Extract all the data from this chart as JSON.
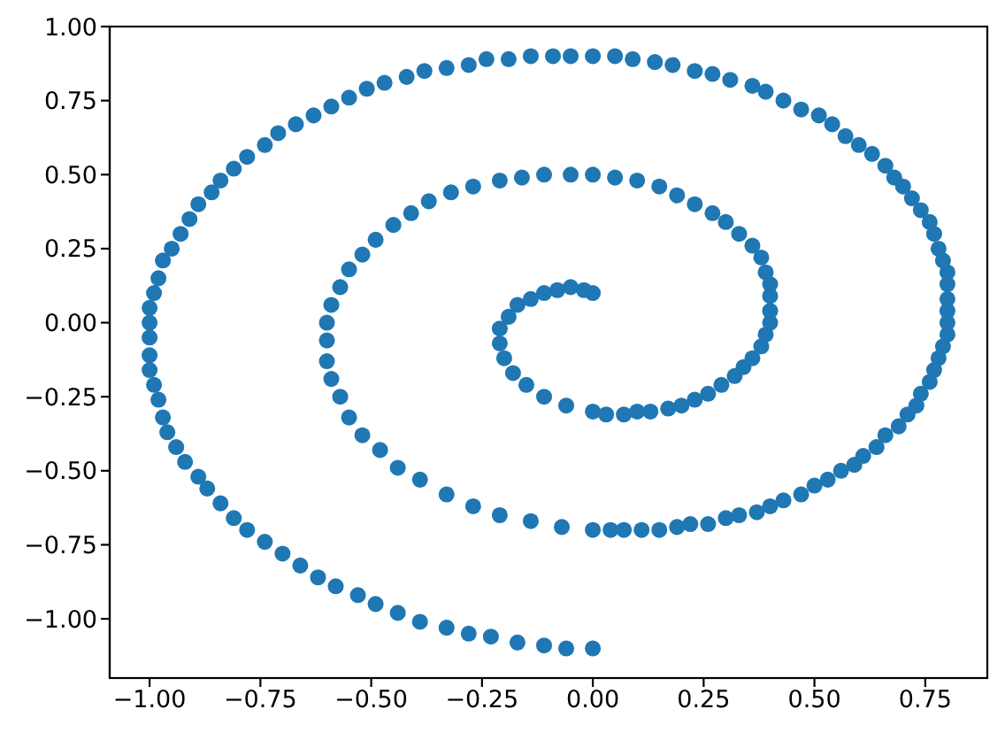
{
  "chart_data": {
    "type": "scatter",
    "color": "#1f77b4",
    "marker": "circle",
    "xlim": [
      -1.09,
      0.89
    ],
    "ylim": [
      -1.2,
      1.0
    ],
    "xticks": [
      {
        "value": -1,
        "label": "−1.00"
      },
      {
        "value": -0.75,
        "label": "−0.75"
      },
      {
        "value": -0.5,
        "label": "−0.50"
      },
      {
        "value": -0.25,
        "label": "−0.25"
      },
      {
        "value": 0,
        "label": "0.00"
      },
      {
        "value": 0.25,
        "label": "0.25"
      },
      {
        "value": 0.5,
        "label": "0.50"
      },
      {
        "value": 0.75,
        "label": "0.75"
      }
    ],
    "yticks": [
      {
        "value": -1,
        "label": "−1.00"
      },
      {
        "value": -0.75,
        "label": "−0.75"
      },
      {
        "value": -0.5,
        "label": "−0.50"
      },
      {
        "value": -0.25,
        "label": "−0.25"
      },
      {
        "value": 0,
        "label": "0.00"
      },
      {
        "value": 0.25,
        "label": "0.25"
      },
      {
        "value": 0.5,
        "label": "0.50"
      },
      {
        "value": 0.75,
        "label": "0.75"
      },
      {
        "value": 1,
        "label": "1.00"
      }
    ],
    "x": [
      0,
      -0.02,
      -0.05,
      -0.08,
      -0.11,
      -0.14,
      -0.17,
      -0.19,
      -0.21,
      -0.21,
      -0.2,
      -0.18,
      -0.15,
      -0.11,
      -0.06,
      0,
      0.03,
      0.07,
      0.1,
      0.13,
      0.17,
      0.2,
      0.23,
      0.26,
      0.29,
      0.32,
      0.34,
      0.36,
      0.38,
      0.39,
      0.4,
      0.4,
      0.4,
      0.4,
      0.39,
      0.38,
      0.36,
      0.33,
      0.3,
      0.27,
      0.23,
      0.19,
      0.15,
      0.1,
      0.05,
      0,
      -0.05,
      -0.11,
      -0.16,
      -0.21,
      -0.27,
      -0.32,
      -0.37,
      -0.41,
      -0.45,
      -0.49,
      -0.52,
      -0.55,
      -0.57,
      -0.59,
      -0.6,
      -0.6,
      -0.6,
      -0.59,
      -0.57,
      -0.55,
      -0.52,
      -0.48,
      -0.44,
      -0.39,
      -0.33,
      -0.27,
      -0.21,
      -0.14,
      -0.07,
      0,
      0.04,
      0.07,
      0.11,
      0.15,
      0.19,
      0.22,
      0.26,
      0.3,
      0.33,
      0.37,
      0.4,
      0.43,
      0.47,
      0.5,
      0.53,
      0.56,
      0.59,
      0.61,
      0.64,
      0.66,
      0.69,
      0.71,
      0.73,
      0.74,
      0.76,
      0.77,
      0.78,
      0.79,
      0.8,
      0.8,
      0.8,
      0.8,
      0.8,
      0.8,
      0.79,
      0.78,
      0.77,
      0.76,
      0.74,
      0.72,
      0.7,
      0.68,
      0.66,
      0.63,
      0.6,
      0.57,
      0.54,
      0.51,
      0.47,
      0.43,
      0.39,
      0.36,
      0.31,
      0.27,
      0.23,
      0.18,
      0.14,
      0.09,
      0.05,
      0,
      -0.05,
      -0.09,
      -0.14,
      -0.19,
      -0.24,
      -0.28,
      -0.33,
      -0.38,
      -0.42,
      -0.47,
      -0.51,
      -0.55,
      -0.59,
      -0.63,
      -0.67,
      -0.71,
      -0.74,
      -0.78,
      -0.81,
      -0.84,
      -0.86,
      -0.89,
      -0.91,
      -0.93,
      -0.95,
      -0.97,
      -0.98,
      -0.99,
      -1,
      -1,
      -1,
      -1,
      -1,
      -0.99,
      -0.98,
      -0.97,
      -0.96,
      -0.94,
      -0.92,
      -0.89,
      -0.87,
      -0.84,
      -0.81,
      -0.78,
      -0.74,
      -0.7,
      -0.66,
      -0.62,
      -0.58,
      -0.53,
      -0.49,
      -0.44,
      -0.39,
      -0.33,
      -0.28,
      -0.23,
      -0.17,
      -0.11,
      -0.06,
      0
    ],
    "values": [
      0.1,
      0.11,
      0.12,
      0.11,
      0.1,
      0.08,
      0.06,
      0.02,
      -0.02,
      -0.07,
      -0.12,
      -0.17,
      -0.21,
      -0.25,
      -0.28,
      -0.3,
      -0.31,
      -0.31,
      -0.3,
      -0.3,
      -0.29,
      -0.28,
      -0.26,
      -0.24,
      -0.21,
      -0.18,
      -0.15,
      -0.12,
      -0.08,
      -0.04,
      0,
      0.04,
      0.09,
      0.13,
      0.17,
      0.22,
      0.26,
      0.3,
      0.34,
      0.37,
      0.4,
      0.43,
      0.46,
      0.48,
      0.49,
      0.5,
      0.5,
      0.5,
      0.49,
      0.48,
      0.46,
      0.44,
      0.41,
      0.37,
      0.33,
      0.28,
      0.23,
      0.18,
      0.12,
      0.06,
      0,
      -0.06,
      -0.13,
      -0.19,
      -0.25,
      -0.32,
      -0.38,
      -0.43,
      -0.49,
      -0.53,
      -0.58,
      -0.62,
      -0.65,
      -0.67,
      -0.69,
      -0.7,
      -0.7,
      -0.7,
      -0.7,
      -0.7,
      -0.69,
      -0.68,
      -0.68,
      -0.66,
      -0.65,
      -0.64,
      -0.62,
      -0.6,
      -0.58,
      -0.55,
      -0.53,
      -0.5,
      -0.48,
      -0.45,
      -0.42,
      -0.38,
      -0.35,
      -0.31,
      -0.28,
      -0.24,
      -0.2,
      -0.16,
      -0.12,
      -0.08,
      -0.04,
      0,
      0.04,
      0.08,
      0.13,
      0.17,
      0.21,
      0.25,
      0.3,
      0.34,
      0.38,
      0.42,
      0.46,
      0.49,
      0.53,
      0.57,
      0.6,
      0.63,
      0.67,
      0.7,
      0.72,
      0.75,
      0.78,
      0.8,
      0.82,
      0.84,
      0.85,
      0.87,
      0.88,
      0.89,
      0.9,
      0.9,
      0.9,
      0.9,
      0.9,
      0.89,
      0.89,
      0.87,
      0.86,
      0.85,
      0.83,
      0.81,
      0.79,
      0.76,
      0.73,
      0.7,
      0.67,
      0.64,
      0.6,
      0.56,
      0.52,
      0.48,
      0.44,
      0.4,
      0.35,
      0.3,
      0.25,
      0.21,
      0.15,
      0.1,
      0.05,
      0,
      -0.05,
      -0.11,
      -0.16,
      -0.21,
      -0.26,
      -0.32,
      -0.37,
      -0.42,
      -0.47,
      -0.52,
      -0.56,
      -0.61,
      -0.66,
      -0.7,
      -0.74,
      -0.78,
      -0.82,
      -0.86,
      -0.89,
      -0.92,
      -0.95,
      -0.98,
      -1.01,
      -1.03,
      -1.05,
      -1.06,
      -1.08,
      -1.09,
      -1.1,
      -1.1
    ]
  }
}
